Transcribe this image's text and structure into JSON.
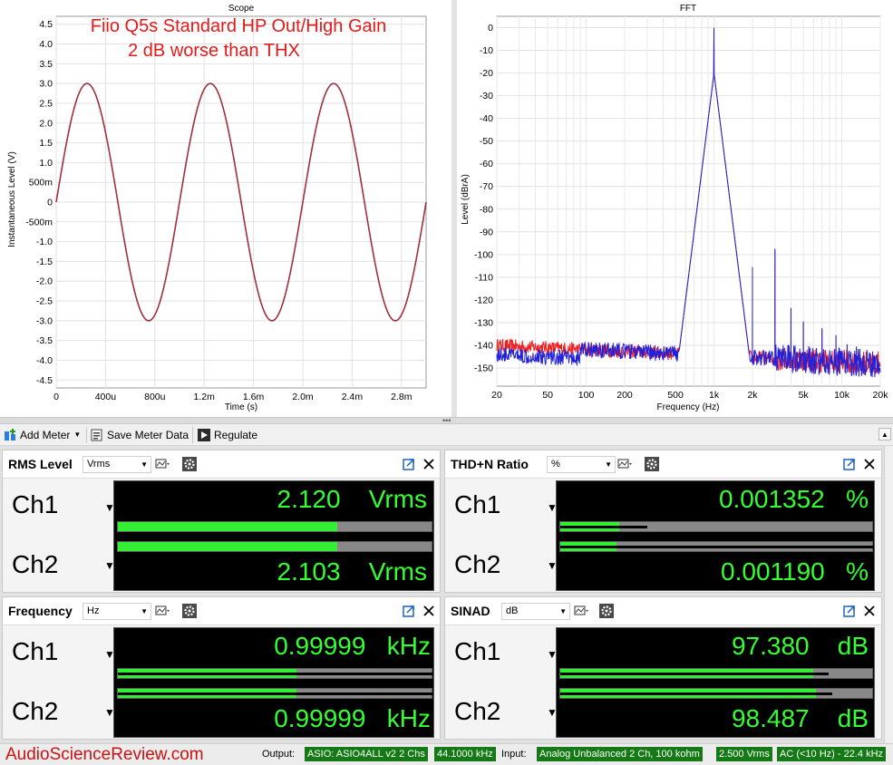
{
  "scope": {
    "title": "Scope",
    "annotation_line1": "Fiio Q5s Standard HP Out/High Gain",
    "annotation_line2": "2 dB worse than THX",
    "ylabel": "Instantaneous Level (V)",
    "xlabel": "Time (s)",
    "yticks": [
      "4.5",
      "4.0",
      "3.5",
      "3.0",
      "2.5",
      "2.0",
      "1.5",
      "1.0",
      "500m",
      "0",
      "-500m",
      "-1.0",
      "-1.5",
      "-2.0",
      "-2.5",
      "-3.0",
      "-3.5",
      "-4.0",
      "-4.5"
    ],
    "xticks": [
      "0",
      "400u",
      "800u",
      "1.2m",
      "1.6m",
      "2.0m",
      "2.4m",
      "2.8m"
    ]
  },
  "fft": {
    "title": "FFT",
    "ylabel": "Level (dBrA)",
    "xlabel": "Frequency (Hz)",
    "yticks": [
      "0",
      "-10",
      "-20",
      "-30",
      "-40",
      "-50",
      "-60",
      "-70",
      "-80",
      "-90",
      "-100",
      "-110",
      "-120",
      "-130",
      "-140",
      "-150"
    ],
    "xticks": [
      "20",
      "50",
      "100",
      "200",
      "500",
      "1k",
      "2k",
      "5k",
      "10k",
      "20k"
    ]
  },
  "chart_data": [
    {
      "type": "line",
      "title": "Scope",
      "xlabel": "Time (s)",
      "ylabel": "Instantaneous Level (V)",
      "xlim": [
        0,
        0.003
      ],
      "ylim": [
        -4.7,
        4.7
      ],
      "grid": true,
      "series": [
        {
          "color": "#a03040",
          "shape": "sine",
          "amplitude": 3.0,
          "frequency_hz": 999.99,
          "phase_start": 0
        }
      ]
    },
    {
      "type": "line",
      "title": "FFT",
      "xlabel": "Frequency (Hz)",
      "ylabel": "Level (dBrA)",
      "xscale": "log",
      "xlim": [
        20,
        20000
      ],
      "ylim": [
        -158,
        5
      ],
      "grid": true,
      "series": [
        {
          "color": "#ee2020",
          "channel": "Ch1"
        },
        {
          "color": "#2020dd",
          "channel": "Ch2"
        }
      ],
      "fundamental": {
        "x": 1000,
        "y": 0
      },
      "harmonics": [
        {
          "x": 2000,
          "y": -106
        },
        {
          "x": 3000,
          "y": -98
        },
        {
          "x": 4000,
          "y": -124
        },
        {
          "x": 5000,
          "y": -130
        },
        {
          "x": 7000,
          "y": -133
        },
        {
          "x": 9000,
          "y": -136
        },
        {
          "x": 11000,
          "y": -140
        },
        {
          "x": 13000,
          "y": -141
        }
      ],
      "noise_floor_low_hz": -140,
      "noise_floor_high_hz": -148
    }
  ],
  "toolbar": {
    "add_meter": "Add Meter",
    "save_meter_data": "Save Meter Data",
    "regulate": "Regulate"
  },
  "meters": {
    "rms": {
      "title": "RMS Level",
      "unit_option": "Vrms",
      "ch1_label": "Ch1",
      "ch2_label": "Ch2",
      "ch1_value": "2.120",
      "ch2_value": "2.103",
      "ch1_unit": "Vrms",
      "ch2_unit": "Vrms",
      "ch1_bar": 0.7,
      "ch2_bar": 0.7
    },
    "thdn": {
      "title": "THD+N Ratio",
      "unit_option": "%",
      "ch1_label": "Ch1",
      "ch2_label": "Ch2",
      "ch1_value": "0.001352",
      "ch2_value": "0.001190",
      "ch1_unit": "%",
      "ch2_unit": "%",
      "ch1_bar": 0.19,
      "ch2_bar": 0.18
    },
    "freq": {
      "title": "Frequency",
      "unit_option": "Hz",
      "ch1_label": "Ch1",
      "ch2_label": "Ch2",
      "ch1_value": "0.99999",
      "ch2_value": "0.99999",
      "ch1_unit": "kHz",
      "ch2_unit": "kHz",
      "ch1_bar": 0.57,
      "ch2_bar": 0.57
    },
    "sinad": {
      "title": "SINAD",
      "unit_option": "dB",
      "ch1_label": "Ch1",
      "ch2_label": "Ch2",
      "ch1_value": "97.380",
      "ch2_value": "98.487",
      "ch1_unit": "dB",
      "ch2_unit": "dB",
      "ch1_bar": 0.81,
      "ch2_bar": 0.82
    }
  },
  "status": {
    "brand": "AudioScienceReview.com",
    "output_label": "Output:",
    "output_device": "ASIO: ASIO4ALL v2 2 Chs",
    "output_rate": "44.1000 kHz",
    "input_label": "Input:",
    "input_device": "Analog Unbalanced 2 Ch, 100 kohm",
    "input_range": "2.500 Vrms",
    "input_filter": "AC (<10 Hz) - 22.4 kHz"
  },
  "colors": {
    "readout": "#33ff33",
    "bar_fill": "#33ee33",
    "scope_trace": "#a03040",
    "fft_ch1": "#ee2020",
    "fft_ch2": "#2020dd",
    "brand": "#cc1111",
    "status_chip": "#157a15"
  }
}
